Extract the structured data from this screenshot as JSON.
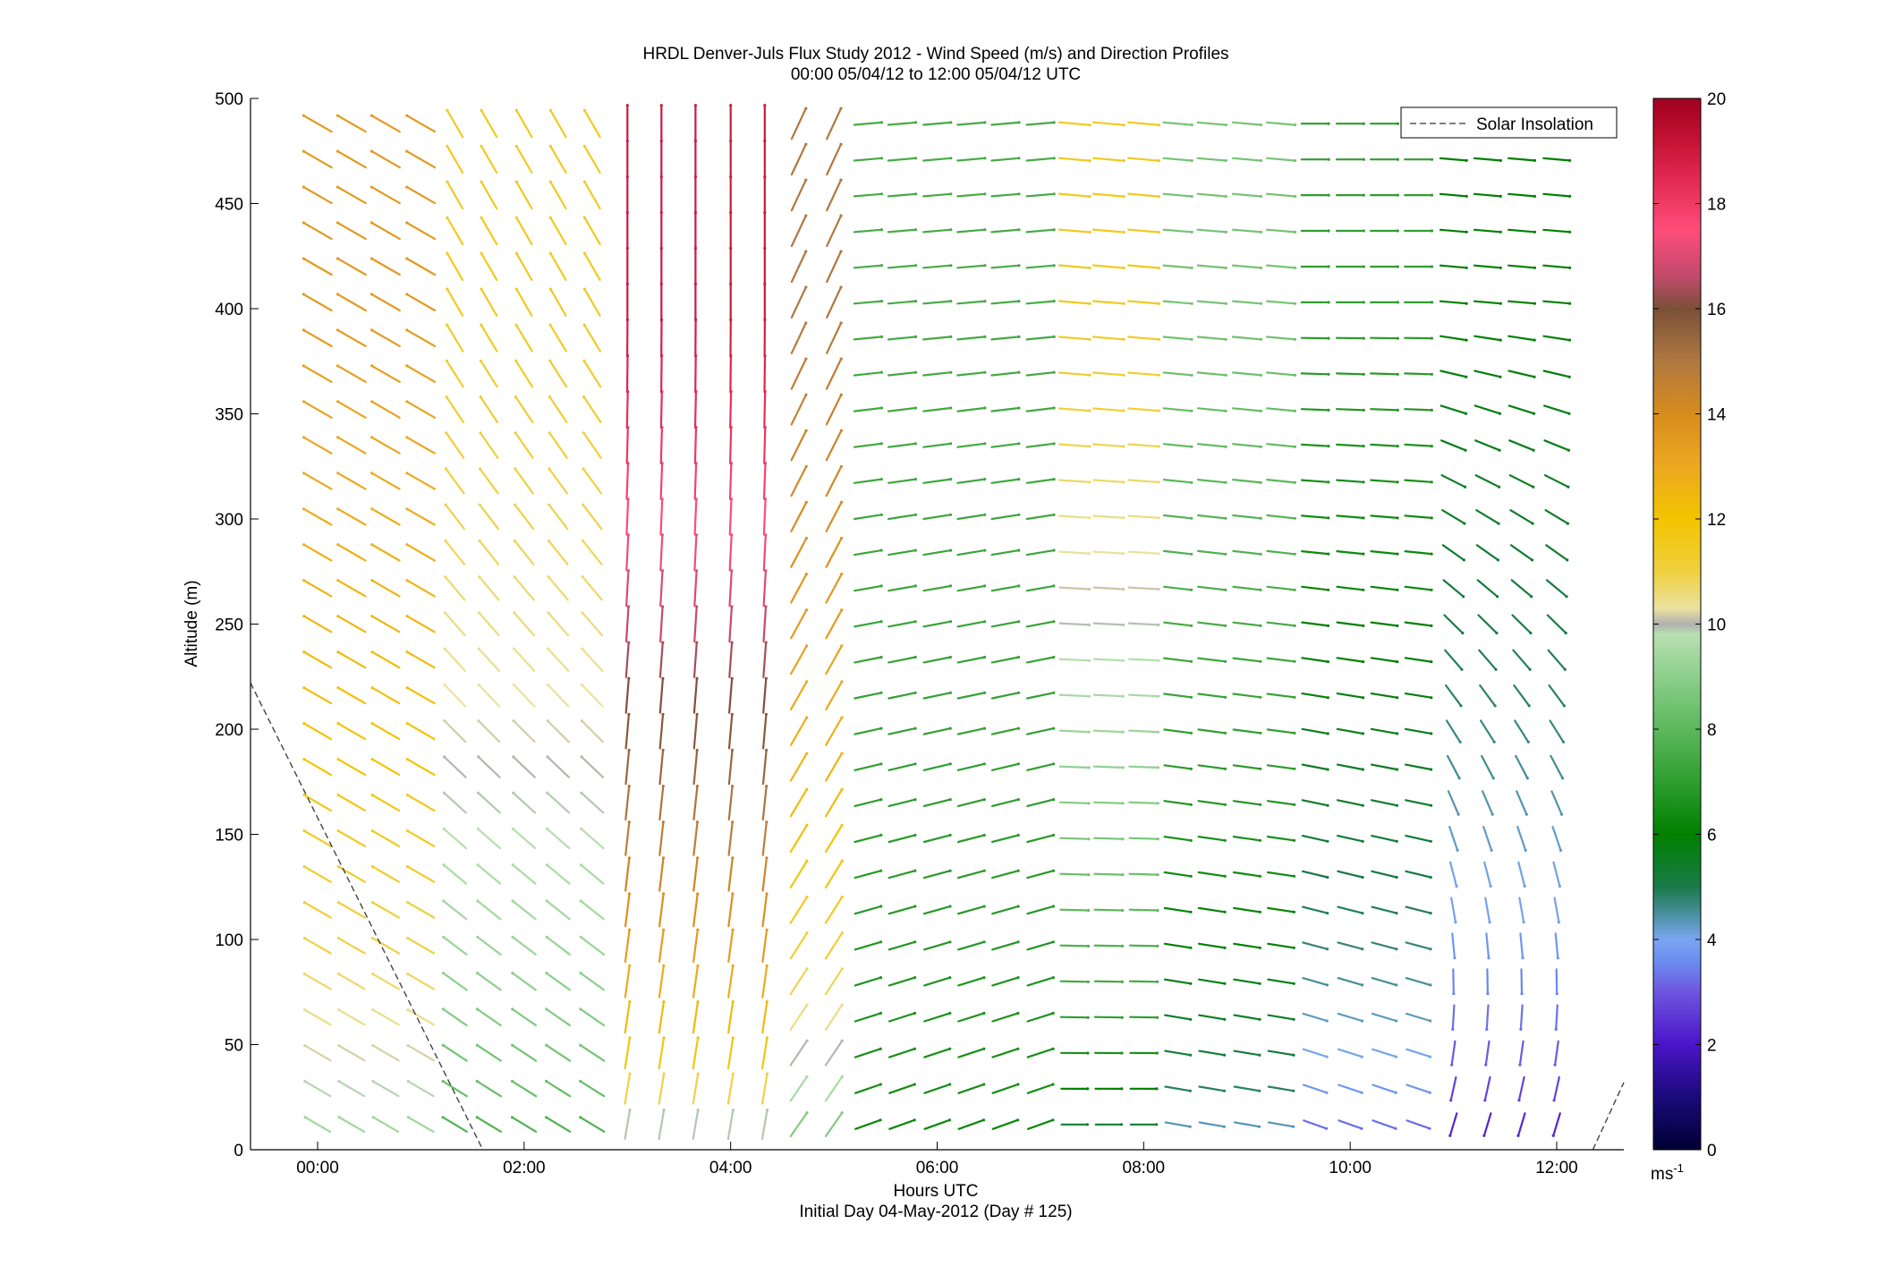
{
  "chart_data": {
    "type": "wind_barbs",
    "title": "HRDL Denver-Juls Flux Study 2012 - Wind Speed (m/s) and Direction Profiles",
    "subtitle": "00:00 05/04/12 to 12:00 05/04/12  UTC",
    "xlabel": "Hours UTC",
    "xlabel2": "Initial Day 04-May-2012 (Day # 125)",
    "ylabel": "Altitude (m)",
    "xlim_hours": [
      -0.65,
      12.65
    ],
    "ylim": [
      0,
      500
    ],
    "x_ticks": [
      {
        "hour": 0,
        "label": "00:00"
      },
      {
        "hour": 2,
        "label": "02:00"
      },
      {
        "hour": 4,
        "label": "04:00"
      },
      {
        "hour": 6,
        "label": "06:00"
      },
      {
        "hour": 8,
        "label": "08:00"
      },
      {
        "hour": 10,
        "label": "10:00"
      },
      {
        "hour": 12,
        "label": "12:00"
      }
    ],
    "y_ticks": [
      {
        "value": 0,
        "label": "0"
      },
      {
        "value": 50,
        "label": "50"
      },
      {
        "value": 100,
        "label": "100"
      },
      {
        "value": 150,
        "label": "150"
      },
      {
        "value": 200,
        "label": "200"
      },
      {
        "value": 250,
        "label": "250"
      },
      {
        "value": 300,
        "label": "300"
      },
      {
        "value": 350,
        "label": "350"
      },
      {
        "value": 400,
        "label": "400"
      },
      {
        "value": 450,
        "label": "450"
      },
      {
        "value": 500,
        "label": "500"
      }
    ],
    "colorbar": {
      "range": [
        0,
        20
      ],
      "ticks": [
        {
          "value": 0,
          "label": "0"
        },
        {
          "value": 2,
          "label": "2"
        },
        {
          "value": 4,
          "label": "4"
        },
        {
          "value": 6,
          "label": "6"
        },
        {
          "value": 8,
          "label": "8"
        },
        {
          "value": 10,
          "label": "10"
        },
        {
          "value": 12,
          "label": "12"
        },
        {
          "value": 14,
          "label": "14"
        },
        {
          "value": 16,
          "label": "16"
        },
        {
          "value": 18,
          "label": "18"
        },
        {
          "value": 20,
          "label": "20"
        }
      ],
      "unit_base": "ms",
      "unit_exp": "-1",
      "stops": [
        {
          "v": 0,
          "c": "#000033"
        },
        {
          "v": 1,
          "c": "#1a0a7a"
        },
        {
          "v": 2,
          "c": "#4b14c8"
        },
        {
          "v": 3,
          "c": "#6e55e0"
        },
        {
          "v": 3.6,
          "c": "#6a8ff0"
        },
        {
          "v": 4,
          "c": "#7aa6f2"
        },
        {
          "v": 4.6,
          "c": "#3d8a8a"
        },
        {
          "v": 5,
          "c": "#1a7a4a"
        },
        {
          "v": 6,
          "c": "#008000"
        },
        {
          "v": 7,
          "c": "#2f9e2f"
        },
        {
          "v": 8,
          "c": "#5cb85c"
        },
        {
          "v": 9,
          "c": "#8ccf8c"
        },
        {
          "v": 9.8,
          "c": "#b8e0b0"
        },
        {
          "v": 10,
          "c": "#b0b0b0"
        },
        {
          "v": 10.3,
          "c": "#eae2a0"
        },
        {
          "v": 11,
          "c": "#f0d040"
        },
        {
          "v": 12,
          "c": "#f2c400"
        },
        {
          "v": 13,
          "c": "#eca820"
        },
        {
          "v": 14,
          "c": "#d88c1e"
        },
        {
          "v": 15,
          "c": "#b07840"
        },
        {
          "v": 16,
          "c": "#7a5038"
        },
        {
          "v": 16.6,
          "c": "#c04a6a"
        },
        {
          "v": 17.5,
          "c": "#ff4d7a"
        },
        {
          "v": 18.5,
          "c": "#e02850"
        },
        {
          "v": 19.3,
          "c": "#c01030"
        },
        {
          "v": 20,
          "c": "#a00020"
        }
      ]
    },
    "legend": {
      "label": "Solar Insolation",
      "style": "dashed",
      "placement": "top-right"
    },
    "solar_insolation": [
      {
        "hour": -0.65,
        "alt": 222
      },
      {
        "hour": 1.6,
        "alt": 0
      }
    ],
    "solar_insolation_late": [
      {
        "hour": 12.35,
        "alt": 0
      },
      {
        "hour": 12.65,
        "alt": 32
      }
    ],
    "barb_columns_hours": [
      0.0,
      0.33,
      0.66,
      1.0,
      1.33,
      1.66,
      2.0,
      2.33,
      2.66,
      3.0,
      3.33,
      3.66,
      4.0,
      4.33,
      4.66,
      5.0,
      5.33,
      5.66,
      6.0,
      6.33,
      6.66,
      7.0,
      7.33,
      7.66,
      8.0,
      8.33,
      8.66,
      9.0,
      9.33,
      9.66,
      10.0,
      10.33,
      10.66,
      11.0,
      11.33,
      11.66,
      12.0
    ],
    "barb_altitude_step_m": 17,
    "barb_max_altitude_m": 490,
    "wind_regimes_description_keys": [
      {
        "hour_to": 1.2,
        "low_speed": 8.5,
        "high_speed": 13.5,
        "dir_deg_low": 300,
        "dir_deg_high": 300
      },
      {
        "hour_to": 2.7,
        "low_speed": 7.0,
        "high_speed": 11.5,
        "dir_deg_low": 300,
        "dir_deg_high": 330
      },
      {
        "hour_to": 4.6,
        "low_speed": 8.0,
        "high_speed": 19.0,
        "dir_deg_low": 10,
        "dir_deg_high": 0
      },
      {
        "hour_to": 5.3,
        "low_speed": 7.5,
        "high_speed": 15.0,
        "dir_deg_low": 35,
        "dir_deg_high": 25
      },
      {
        "hour_to": 7.0,
        "low_speed": 6.0,
        "high_speed": 7.5,
        "dir_deg_low": 70,
        "dir_deg_high": 85
      },
      {
        "hour_to": 8.2,
        "low_speed": 4.0,
        "high_speed": 11.5,
        "dir_deg_low": 90,
        "dir_deg_high": 95
      },
      {
        "hour_to": 9.6,
        "low_speed": 3.5,
        "high_speed": 8.5,
        "dir_deg_low": 100,
        "dir_deg_high": 95
      },
      {
        "hour_to": 10.8,
        "low_speed": 2.5,
        "high_speed": 7.0,
        "dir_deg_low": 110,
        "dir_deg_high": 90
      },
      {
        "hour_to": 12.1,
        "low_speed": 1.5,
        "high_speed": 6.0,
        "dir_deg_low": 200,
        "dir_deg_high": 95
      }
    ]
  }
}
